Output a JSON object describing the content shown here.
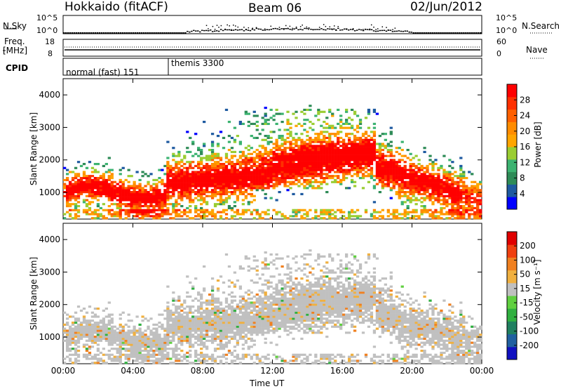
{
  "header": {
    "station": "Hokkaido (fitACF)",
    "beam": "Beam 06",
    "date": "02/Jun/2012"
  },
  "top_panels": {
    "nsky_label": "N.Sky",
    "nsky_ticks": [
      "10^5",
      "10^0"
    ],
    "nsearch_label": "N.Search",
    "freq_label_1": "Freq.",
    "freq_label_2": "[MHz]",
    "freq_ticks": [
      "18",
      "8"
    ],
    "nave_label": "Nave",
    "nave_ticks": [
      "60",
      "0"
    ],
    "cpid_label": "CPID",
    "cpid_segments": [
      {
        "label": "normal (fast) 151",
        "start_hour": 0
      },
      {
        "label": "themis 3300",
        "start_hour": 6
      }
    ]
  },
  "chart_data": [
    {
      "type": "heatmap",
      "name": "power",
      "xlabel": "Time UT",
      "ylabel": "Slant Range [km]",
      "x_ticks": [
        "00:00",
        "04:00",
        "08:00",
        "12:00",
        "16:00",
        "20:00",
        "00:00"
      ],
      "xlim": [
        0,
        24
      ],
      "y_ticks": [
        1000,
        2000,
        3000,
        4000
      ],
      "ylim": [
        180,
        4500
      ],
      "colorbar": {
        "label": "Power [dB]",
        "ticks": [
          4,
          8,
          12,
          16,
          20,
          24,
          28
        ],
        "colors": [
          "#0000ff",
          "#1e5aa0",
          "#2e8b57",
          "#3cb371",
          "#9acd32",
          "#ffa500",
          "#ff8c00",
          "#ff6000",
          "#ff3000",
          "#ff0000"
        ]
      }
    },
    {
      "type": "heatmap",
      "name": "velocity",
      "xlabel": "Time UT",
      "ylabel": "Slant Range [km]",
      "x_ticks": [
        "00:00",
        "04:00",
        "08:00",
        "12:00",
        "16:00",
        "20:00",
        "00:00"
      ],
      "xlim": [
        0,
        24
      ],
      "y_ticks": [
        1000,
        2000,
        3000,
        4000
      ],
      "ylim": [
        180,
        4500
      ],
      "colorbar": {
        "label": "Velocity [m s⁻¹]",
        "ticks": [
          200,
          100,
          50,
          15,
          -15,
          -50,
          -100,
          -200
        ],
        "colors": [
          "#1010c0",
          "#2060a0",
          "#208060",
          "#30b040",
          "#60d040",
          "#c0c0c0",
          "#f0b040",
          "#f08020",
          "#f04010",
          "#e00000"
        ]
      }
    }
  ],
  "xaxis_title": "Time UT"
}
